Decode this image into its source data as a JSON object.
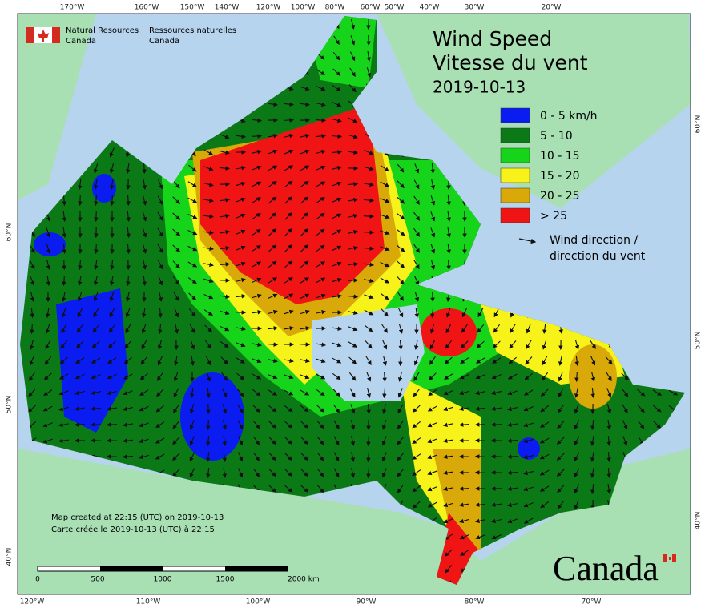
{
  "agency": {
    "en_1": "Natural Resources",
    "en_2": "Canada",
    "fr_1": "Ressources naturelles",
    "fr_2": "Canada"
  },
  "title": {
    "line1": "Wind Speed",
    "line2": "Vitesse du vent",
    "date": "2019-10-13"
  },
  "legend": {
    "classes": [
      {
        "label": "0 - 5 km/h",
        "color": "#0a1cf0"
      },
      {
        "label": "5 - 10",
        "color": "#0b7a16"
      },
      {
        "label": "10 - 15",
        "color": "#16d41a"
      },
      {
        "label": "15 - 20",
        "color": "#f7f21a"
      },
      {
        "label": "20 - 25",
        "color": "#d9a90a"
      },
      {
        "label": "> 25",
        "color": "#f01414"
      }
    ],
    "arrow": [
      "Wind direction /",
      "direction du vent"
    ]
  },
  "graticule": {
    "top": [
      "170°W",
      "160°W",
      "150°W",
      "140°W",
      "120°W",
      "100°W",
      "80°W",
      "60°W",
      "50°W",
      "40°W",
      "30°W",
      "20°W"
    ],
    "bottom": [
      "120°W",
      "110°W",
      "100°W",
      "90°W",
      "80°W",
      "70°W"
    ],
    "left": [
      "60°N",
      "50°N",
      "40°N"
    ],
    "right": [
      "60°N",
      "50°N",
      "40°N"
    ]
  },
  "notes": [
    "Map created at 22:15 (UTC) on 2019-10-13",
    "Carte créée le 2019-10-13 (UTC) à 22:15"
  ],
  "scale_bar": {
    "labels": [
      "0",
      "500",
      "1000",
      "1500",
      "2000  km"
    ]
  },
  "wordmark": "Canada"
}
